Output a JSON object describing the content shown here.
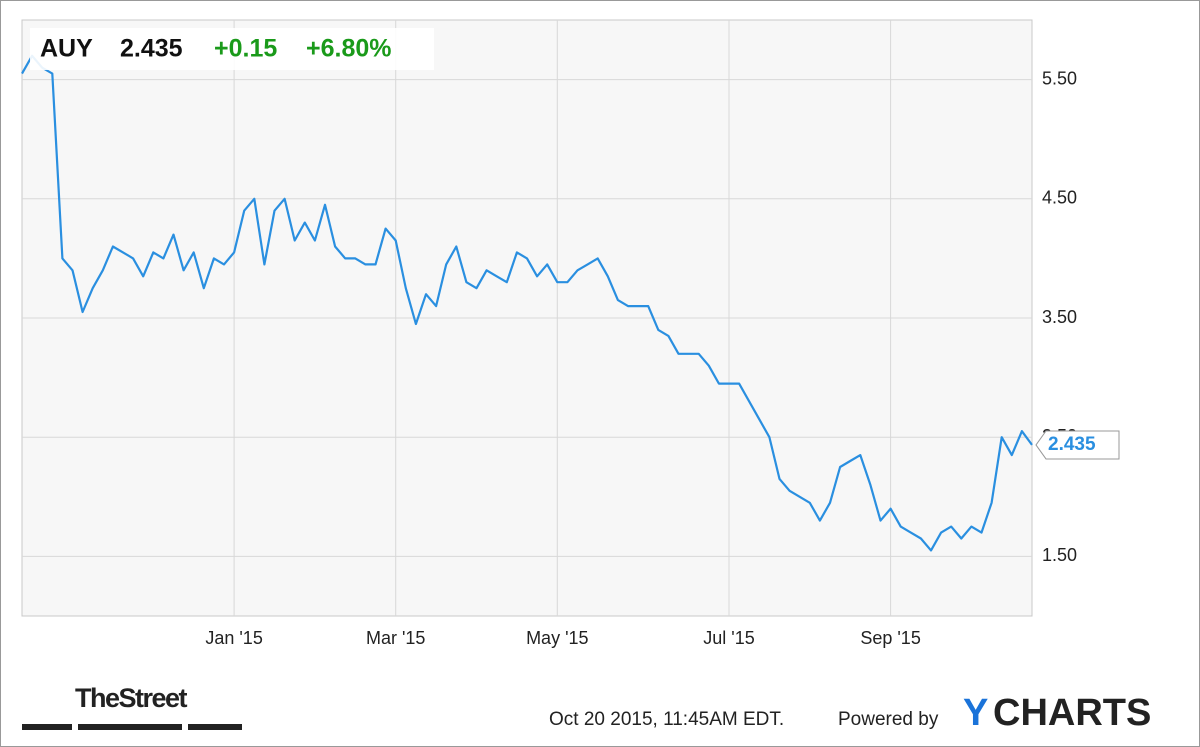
{
  "chart_data": {
    "type": "line",
    "symbol": "AUY",
    "price": 2.435,
    "change": "+0.15",
    "change_pct": "+6.80%",
    "categories": [
      null,
      null,
      null,
      null,
      null,
      null,
      null,
      null,
      null,
      null,
      null,
      null,
      null,
      null,
      null,
      null,
      null,
      null,
      null,
      null,
      null,
      "Jan '15",
      null,
      null,
      null,
      null,
      null,
      null,
      null,
      null,
      null,
      null,
      null,
      null,
      null,
      null,
      null,
      "Mar '15",
      null,
      null,
      null,
      null,
      null,
      null,
      null,
      null,
      null,
      null,
      null,
      null,
      null,
      null,
      null,
      "May '15",
      null,
      null,
      null,
      null,
      null,
      null,
      null,
      null,
      null,
      null,
      null,
      null,
      null,
      null,
      null,
      null,
      "Jul '15",
      null,
      null,
      null,
      null,
      null,
      null,
      null,
      null,
      null,
      null,
      null,
      null,
      null,
      null,
      null,
      "Sep '15",
      null,
      null,
      null,
      null,
      null,
      null,
      null,
      null,
      null,
      null,
      null,
      null,
      null,
      null
    ],
    "values": [
      5.55,
      5.7,
      5.6,
      5.55,
      4.0,
      3.9,
      3.55,
      3.75,
      3.9,
      4.1,
      4.05,
      4.0,
      3.85,
      4.05,
      4.0,
      4.2,
      3.9,
      4.05,
      3.75,
      4.0,
      3.95,
      4.05,
      4.4,
      4.5,
      3.95,
      4.4,
      4.5,
      4.15,
      4.3,
      4.15,
      4.45,
      4.1,
      4.0,
      4.0,
      3.95,
      3.95,
      4.25,
      4.15,
      3.75,
      3.45,
      3.7,
      3.6,
      3.95,
      4.1,
      3.8,
      3.75,
      3.9,
      3.85,
      3.8,
      4.05,
      4.0,
      3.85,
      3.95,
      3.8,
      3.8,
      3.9,
      3.95,
      4.0,
      3.85,
      3.65,
      3.6,
      3.6,
      3.6,
      3.4,
      3.35,
      3.2,
      3.2,
      3.2,
      3.1,
      2.95,
      2.95,
      2.95,
      2.8,
      2.65,
      2.5,
      2.15,
      2.05,
      2.0,
      1.95,
      1.8,
      1.95,
      2.25,
      2.3,
      2.35,
      2.1,
      1.8,
      1.9,
      1.75,
      1.7,
      1.65,
      1.55,
      1.7,
      1.75,
      1.65,
      1.75,
      1.7,
      1.95,
      2.5,
      2.35,
      2.55,
      2.435
    ],
    "color": "#2a8fe0",
    "ylim": [
      1,
      6
    ],
    "yticks": [
      {
        "value": 1.5,
        "label": "1.50"
      },
      {
        "value": 2.5,
        "label": "2.50"
      },
      {
        "value": 3.5,
        "label": "3.50"
      },
      {
        "value": 4.5,
        "label": "4.50"
      },
      {
        "value": 5.5,
        "label": "5.50"
      }
    ],
    "grid": true,
    "publisher": "TheStreet",
    "timestamp": "Oct 20 2015, 11:45AM EDT.",
    "powered_by": "Powered by",
    "brand_y": "Y",
    "brand_rest": "CHARTS"
  }
}
